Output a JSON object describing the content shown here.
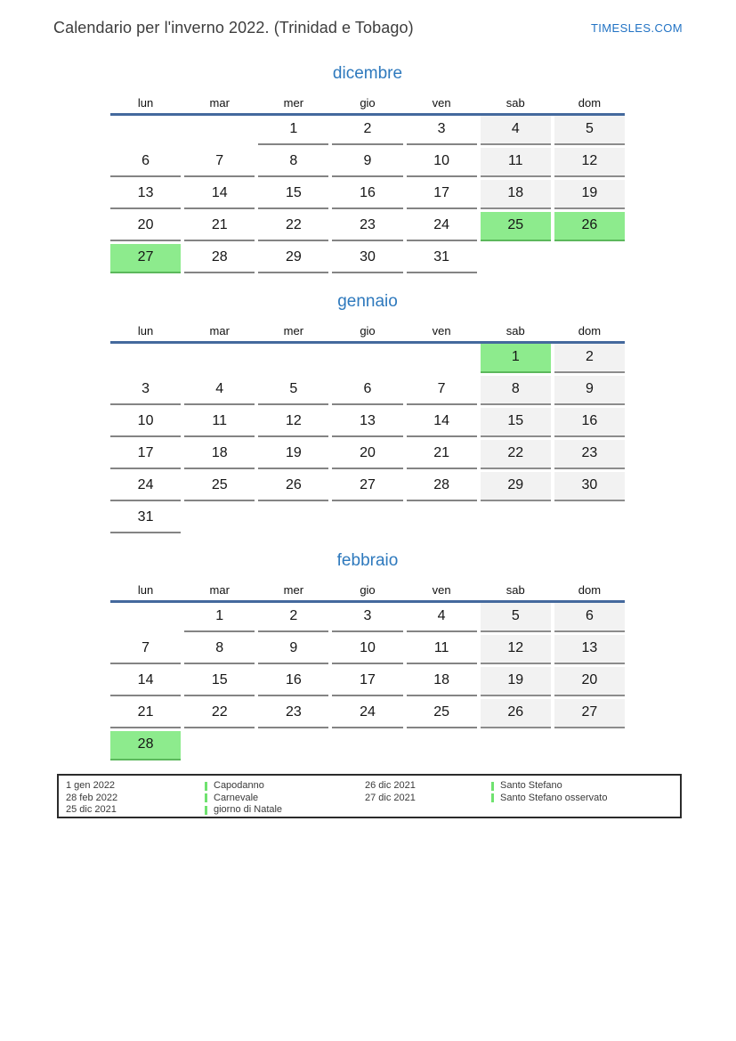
{
  "header": {
    "title": "Calendario per l'inverno 2022. (Trinidad e Tobago)",
    "site": "TIMESLES.COM"
  },
  "colors": {
    "month_title": "#2e79bd",
    "header_rule": "#44699d",
    "weekend_bg": "#f2f2f2",
    "holiday_bg": "#8deb8d",
    "cell_border": "#848484",
    "legend_marker": "#6fe26f",
    "site_link": "#2273c4"
  },
  "weekdays": [
    "lun",
    "mar",
    "mer",
    "gio",
    "ven",
    "sab",
    "dom"
  ],
  "months": [
    {
      "name": "dicembre",
      "css": "month-dec",
      "weeks": [
        [
          null,
          null,
          {
            "d": 1,
            "t": "n"
          },
          {
            "d": 2,
            "t": "n"
          },
          {
            "d": 3,
            "t": "n"
          },
          {
            "d": 4,
            "t": "w"
          },
          {
            "d": 5,
            "t": "w"
          }
        ],
        [
          {
            "d": 6,
            "t": "n"
          },
          {
            "d": 7,
            "t": "n"
          },
          {
            "d": 8,
            "t": "n"
          },
          {
            "d": 9,
            "t": "n"
          },
          {
            "d": 10,
            "t": "n"
          },
          {
            "d": 11,
            "t": "w"
          },
          {
            "d": 12,
            "t": "w"
          }
        ],
        [
          {
            "d": 13,
            "t": "n"
          },
          {
            "d": 14,
            "t": "n"
          },
          {
            "d": 15,
            "t": "n"
          },
          {
            "d": 16,
            "t": "n"
          },
          {
            "d": 17,
            "t": "n"
          },
          {
            "d": 18,
            "t": "w"
          },
          {
            "d": 19,
            "t": "w"
          }
        ],
        [
          {
            "d": 20,
            "t": "n"
          },
          {
            "d": 21,
            "t": "n"
          },
          {
            "d": 22,
            "t": "n"
          },
          {
            "d": 23,
            "t": "n"
          },
          {
            "d": 24,
            "t": "n"
          },
          {
            "d": 25,
            "t": "h"
          },
          {
            "d": 26,
            "t": "h"
          }
        ],
        [
          {
            "d": 27,
            "t": "h"
          },
          {
            "d": 28,
            "t": "n"
          },
          {
            "d": 29,
            "t": "n"
          },
          {
            "d": 30,
            "t": "n"
          },
          {
            "d": 31,
            "t": "n"
          },
          null,
          null
        ]
      ]
    },
    {
      "name": "gennaio",
      "css": "month-jan",
      "weeks": [
        [
          null,
          null,
          null,
          null,
          null,
          {
            "d": 1,
            "t": "h"
          },
          {
            "d": 2,
            "t": "w"
          }
        ],
        [
          {
            "d": 3,
            "t": "n"
          },
          {
            "d": 4,
            "t": "n"
          },
          {
            "d": 5,
            "t": "n"
          },
          {
            "d": 6,
            "t": "n"
          },
          {
            "d": 7,
            "t": "n"
          },
          {
            "d": 8,
            "t": "w"
          },
          {
            "d": 9,
            "t": "w"
          }
        ],
        [
          {
            "d": 10,
            "t": "n"
          },
          {
            "d": 11,
            "t": "n"
          },
          {
            "d": 12,
            "t": "n"
          },
          {
            "d": 13,
            "t": "n"
          },
          {
            "d": 14,
            "t": "n"
          },
          {
            "d": 15,
            "t": "w"
          },
          {
            "d": 16,
            "t": "w"
          }
        ],
        [
          {
            "d": 17,
            "t": "n"
          },
          {
            "d": 18,
            "t": "n"
          },
          {
            "d": 19,
            "t": "n"
          },
          {
            "d": 20,
            "t": "n"
          },
          {
            "d": 21,
            "t": "n"
          },
          {
            "d": 22,
            "t": "w"
          },
          {
            "d": 23,
            "t": "w"
          }
        ],
        [
          {
            "d": 24,
            "t": "n"
          },
          {
            "d": 25,
            "t": "n"
          },
          {
            "d": 26,
            "t": "n"
          },
          {
            "d": 27,
            "t": "n"
          },
          {
            "d": 28,
            "t": "n"
          },
          {
            "d": 29,
            "t": "w"
          },
          {
            "d": 30,
            "t": "w"
          }
        ],
        [
          {
            "d": 31,
            "t": "n"
          },
          null,
          null,
          null,
          null,
          null,
          null
        ]
      ]
    },
    {
      "name": "febbraio",
      "css": "month-feb",
      "weeks": [
        [
          null,
          {
            "d": 1,
            "t": "n"
          },
          {
            "d": 2,
            "t": "n"
          },
          {
            "d": 3,
            "t": "n"
          },
          {
            "d": 4,
            "t": "n"
          },
          {
            "d": 5,
            "t": "w"
          },
          {
            "d": 6,
            "t": "w"
          }
        ],
        [
          {
            "d": 7,
            "t": "n"
          },
          {
            "d": 8,
            "t": "n"
          },
          {
            "d": 9,
            "t": "n"
          },
          {
            "d": 10,
            "t": "n"
          },
          {
            "d": 11,
            "t": "n"
          },
          {
            "d": 12,
            "t": "w"
          },
          {
            "d": 13,
            "t": "w"
          }
        ],
        [
          {
            "d": 14,
            "t": "n"
          },
          {
            "d": 15,
            "t": "n"
          },
          {
            "d": 16,
            "t": "n"
          },
          {
            "d": 17,
            "t": "n"
          },
          {
            "d": 18,
            "t": "n"
          },
          {
            "d": 19,
            "t": "w"
          },
          {
            "d": 20,
            "t": "w"
          }
        ],
        [
          {
            "d": 21,
            "t": "n"
          },
          {
            "d": 22,
            "t": "n"
          },
          {
            "d": 23,
            "t": "n"
          },
          {
            "d": 24,
            "t": "n"
          },
          {
            "d": 25,
            "t": "n"
          },
          {
            "d": 26,
            "t": "w"
          },
          {
            "d": 27,
            "t": "w"
          }
        ],
        [
          {
            "d": 28,
            "t": "h"
          },
          null,
          null,
          null,
          null,
          null,
          null
        ]
      ]
    }
  ],
  "legend": {
    "columns": [
      {
        "type": "dates",
        "items": [
          "1 gen 2022",
          "28 feb 2022",
          "25 dic 2021"
        ]
      },
      {
        "type": "holidays",
        "items": [
          "Capodanno",
          "Carnevale",
          "giorno di Natale"
        ]
      },
      {
        "type": "dates",
        "items": [
          "26 dic 2021",
          "27 dic 2021"
        ]
      },
      {
        "type": "holidays",
        "items": [
          "Santo Stefano",
          "Santo Stefano osservato"
        ]
      }
    ]
  }
}
